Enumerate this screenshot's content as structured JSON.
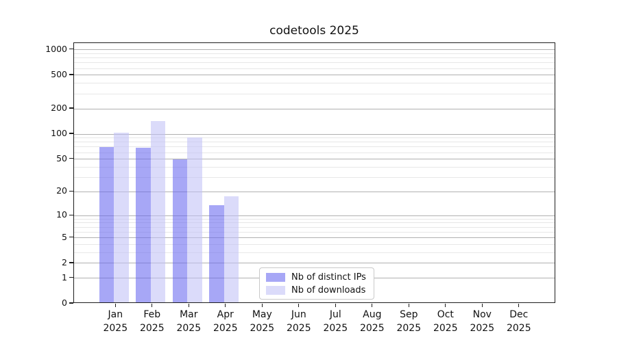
{
  "title": "codetools 2025",
  "chart_data": {
    "type": "bar",
    "title": "codetools 2025",
    "categories": [
      "Jan",
      "Feb",
      "Mar",
      "Apr",
      "May",
      "Jun",
      "Jul",
      "Aug",
      "Sep",
      "Oct",
      "Nov",
      "Dec"
    ],
    "x_tick_year_line": "2025",
    "series": [
      {
        "name": "Nb of distinct IPs",
        "color": "#6464f0",
        "alpha": 0.57,
        "values": [
          68,
          66,
          48,
          13,
          0,
          0,
          0,
          0,
          0,
          0,
          0,
          0
        ]
      },
      {
        "name": "Nb of downloads",
        "color": "#c0c0f6",
        "alpha": 0.57,
        "values": [
          100,
          137,
          88,
          17,
          0,
          0,
          0,
          0,
          0,
          0,
          0,
          0
        ]
      }
    ],
    "scale": "log1p",
    "ylabel": "",
    "xlabel": "",
    "y_ticks": [
      0,
      1,
      2,
      5,
      10,
      20,
      50,
      100,
      200,
      500,
      1000
    ],
    "y_minor_ticks": [
      3,
      4,
      6,
      7,
      8,
      9,
      30,
      40,
      60,
      70,
      80,
      90,
      300,
      400,
      600,
      700,
      800,
      900
    ],
    "ylim": [
      0,
      1200
    ],
    "grid": "horizontal",
    "legend_position": "lower-center-inside",
    "colors": {
      "grid_major": "#b0b0b0",
      "grid_minor": "#e7e7e7",
      "axis": "#1c1c1c",
      "background": "#ffffff"
    }
  }
}
